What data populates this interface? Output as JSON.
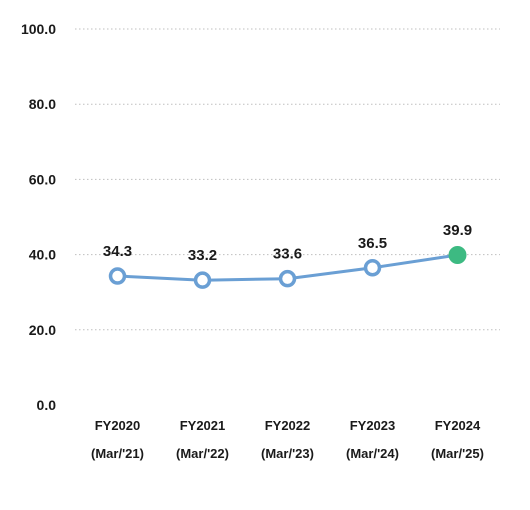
{
  "chart_data": {
    "type": "line",
    "title": "",
    "xlabel": "",
    "ylabel": "",
    "categories": [
      [
        "FY2020",
        "(Mar/'21)"
      ],
      [
        "FY2021",
        "(Mar/'22)"
      ],
      [
        "FY2022",
        "(Mar/'23)"
      ],
      [
        "FY2023",
        "(Mar/'24)"
      ],
      [
        "FY2024",
        "(Mar/'25)"
      ]
    ],
    "series": [
      {
        "values": [
          34.3,
          33.2,
          33.6,
          36.5,
          39.9
        ],
        "data_labels": [
          "34.3",
          "33.2",
          "33.6",
          "36.5",
          "39.9"
        ],
        "line_color": "#6a9fd4",
        "marker_fill": "#ffffff",
        "highlight_index": 4,
        "highlight_color": "#3dba82"
      }
    ],
    "ylim": [
      0,
      100
    ],
    "yticks": [
      0,
      20,
      40,
      60,
      80,
      100
    ],
    "ytick_labels": [
      "0.0",
      "20.0",
      "40.0",
      "60.0",
      "80.0",
      "100.0"
    ],
    "grid": true,
    "grid_color": "#bfbfbf",
    "legend": "none"
  }
}
